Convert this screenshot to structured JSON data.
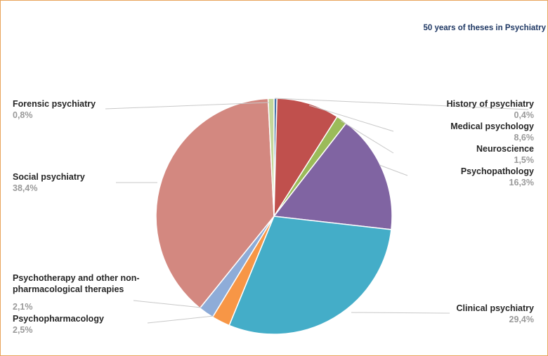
{
  "chart_data": {
    "type": "pie",
    "title": "50 years of theses in Psychiatry",
    "unit": "%",
    "slices": [
      {
        "name": "History of psychiatry",
        "value": 0.4,
        "label": "0,4%",
        "color": "#4472a8"
      },
      {
        "name": "Medical psychology",
        "value": 8.6,
        "label": "8,6%",
        "color": "#c0504d"
      },
      {
        "name": "Neuroscience",
        "value": 1.5,
        "label": "1,5%",
        "color": "#9bbb59"
      },
      {
        "name": "Psychopathology",
        "value": 16.3,
        "label": "16,3%",
        "color": "#8064a2"
      },
      {
        "name": "Clinical psychiatry",
        "value": 29.4,
        "label": "29,4%",
        "color": "#44adc8"
      },
      {
        "name": "Psychopharmacology",
        "value": 2.5,
        "label": "2,5%",
        "color": "#f79646"
      },
      {
        "name": "Psychotherapy and other non-pharmacological therapies",
        "value": 2.1,
        "label": "2,1%",
        "color": "#8eacd8"
      },
      {
        "name": "Social psychiatry",
        "value": 38.4,
        "label": "38,4%",
        "color": "#d38880"
      },
      {
        "name": "Forensic psychiatry",
        "value": 0.8,
        "label": "0,8%",
        "color": "#c4d79b"
      }
    ]
  }
}
